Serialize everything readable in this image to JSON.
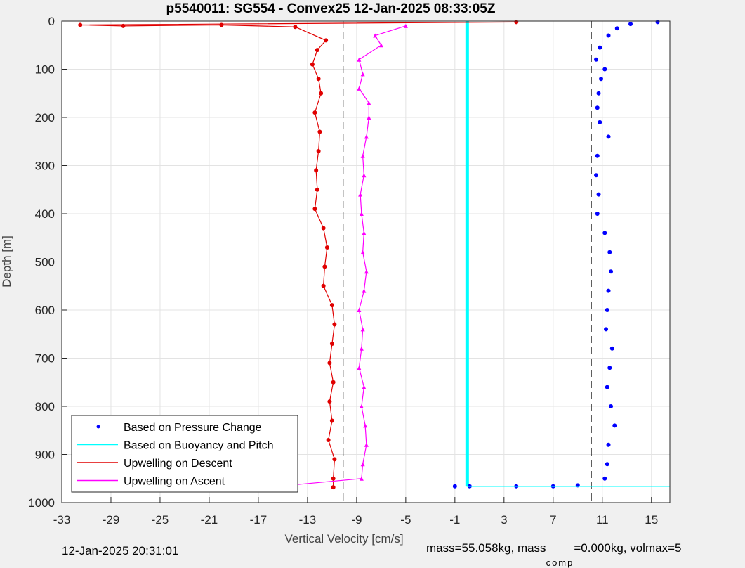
{
  "chart_data": {
    "type": "scatter",
    "title": "p5540011: SG554 - Convex25 12-Jan-2025 08:33:05Z",
    "xlabel": "Vertical Velocity [cm/s]",
    "ylabel": "Depth [m]",
    "xlim": [
      -33,
      16.5
    ],
    "ylim": [
      0,
      1000
    ],
    "y_reversed": true,
    "grid": true,
    "xticks": [
      -33,
      -29,
      -25,
      -21,
      -17,
      -13,
      -9,
      -5,
      -1,
      3,
      7,
      11,
      15
    ],
    "yticks": [
      0,
      100,
      200,
      300,
      400,
      500,
      600,
      700,
      800,
      900,
      1000
    ],
    "xtick_labels": [
      "-33",
      "-29",
      "-25",
      "-21",
      "-17",
      "-13",
      "-9",
      "-5",
      "-1",
      "3",
      "7",
      "11",
      "15"
    ],
    "ytick_labels": [
      "0",
      "100",
      "200",
      "300",
      "400",
      "500",
      "600",
      "700",
      "800",
      "900",
      "1000"
    ],
    "legend_position": "bottom-left",
    "reference_lines": [
      {
        "x": -10.1,
        "style": "dashed",
        "color": "#000000"
      },
      {
        "x": 10.1,
        "style": "dashed",
        "color": "#000000"
      },
      {
        "x": 0,
        "style": "solid",
        "color": "#00ffff"
      }
    ],
    "series": [
      {
        "name": "Based on Pressure Change",
        "color": "#0000ff",
        "marker": "dot",
        "points": [
          [
            15.5,
            2
          ],
          [
            13.3,
            6
          ],
          [
            12.2,
            15
          ],
          [
            11.5,
            30
          ],
          [
            10.8,
            55
          ],
          [
            10.5,
            80
          ],
          [
            11.2,
            100
          ],
          [
            10.9,
            120
          ],
          [
            10.7,
            150
          ],
          [
            10.6,
            180
          ],
          [
            10.8,
            210
          ],
          [
            11.5,
            240
          ],
          [
            10.6,
            280
          ],
          [
            10.5,
            320
          ],
          [
            10.7,
            360
          ],
          [
            10.6,
            400
          ],
          [
            11.2,
            440
          ],
          [
            11.6,
            480
          ],
          [
            11.7,
            520
          ],
          [
            11.5,
            560
          ],
          [
            11.4,
            600
          ],
          [
            11.3,
            640
          ],
          [
            11.8,
            680
          ],
          [
            11.6,
            720
          ],
          [
            11.4,
            760
          ],
          [
            11.7,
            800
          ],
          [
            12.0,
            840
          ],
          [
            11.5,
            880
          ],
          [
            11.4,
            920
          ],
          [
            11.2,
            950
          ],
          [
            4,
            966
          ],
          [
            7,
            966
          ],
          [
            9,
            964
          ],
          [
            0.2,
            966
          ],
          [
            -1,
            966
          ]
        ]
      },
      {
        "name": "Based on Buoyancy and Pitch",
        "color": "#00ffff",
        "marker": "line",
        "points": [
          [
            0,
            2
          ],
          [
            0,
            966
          ],
          [
            16.5,
            966
          ]
        ]
      },
      {
        "name": "Upwelling on Descent",
        "color": "#e00000",
        "marker": "line-dot",
        "points": [
          [
            4,
            2
          ],
          [
            -31.5,
            8
          ],
          [
            -28,
            10
          ],
          [
            -20,
            8
          ],
          [
            -14,
            12
          ],
          [
            -11.5,
            40
          ],
          [
            -12.2,
            60
          ],
          [
            -12.6,
            90
          ],
          [
            -12.1,
            120
          ],
          [
            -11.9,
            150
          ],
          [
            -12.4,
            190
          ],
          [
            -12.0,
            230
          ],
          [
            -12.1,
            270
          ],
          [
            -12.3,
            310
          ],
          [
            -12.2,
            350
          ],
          [
            -12.4,
            390
          ],
          [
            -11.7,
            430
          ],
          [
            -11.4,
            470
          ],
          [
            -11.6,
            510
          ],
          [
            -11.7,
            550
          ],
          [
            -11.0,
            590
          ],
          [
            -10.8,
            630
          ],
          [
            -11.0,
            670
          ],
          [
            -11.2,
            710
          ],
          [
            -10.9,
            750
          ],
          [
            -11.2,
            790
          ],
          [
            -11.0,
            830
          ],
          [
            -11.3,
            870
          ],
          [
            -10.8,
            910
          ],
          [
            -10.9,
            950
          ],
          [
            -10.9,
            968
          ]
        ]
      },
      {
        "name": "Upwelling on Ascent",
        "color": "#ff00ff",
        "marker": "line-triangle",
        "points": [
          [
            -5,
            10
          ],
          [
            -7.5,
            30
          ],
          [
            -7.0,
            50
          ],
          [
            -8.8,
            80
          ],
          [
            -8.5,
            110
          ],
          [
            -8.8,
            140
          ],
          [
            -8.0,
            170
          ],
          [
            -8.0,
            200
          ],
          [
            -8.2,
            240
          ],
          [
            -8.5,
            280
          ],
          [
            -8.4,
            320
          ],
          [
            -8.7,
            360
          ],
          [
            -8.6,
            400
          ],
          [
            -8.4,
            440
          ],
          [
            -8.5,
            480
          ],
          [
            -8.2,
            520
          ],
          [
            -8.4,
            560
          ],
          [
            -8.8,
            600
          ],
          [
            -8.5,
            640
          ],
          [
            -8.6,
            680
          ],
          [
            -8.8,
            720
          ],
          [
            -8.4,
            760
          ],
          [
            -8.6,
            800
          ],
          [
            -8.3,
            840
          ],
          [
            -8.2,
            880
          ],
          [
            -8.5,
            920
          ],
          [
            -8.6,
            950
          ],
          [
            -14.5,
            964
          ]
        ]
      }
    ]
  },
  "footer": {
    "date": "12-Jan-2025 20:31:01",
    "mass_text": "mass=55.058kg, mass",
    "comp_sub": "comp",
    "volmax_text": "=0.000kg, volmax=5"
  }
}
